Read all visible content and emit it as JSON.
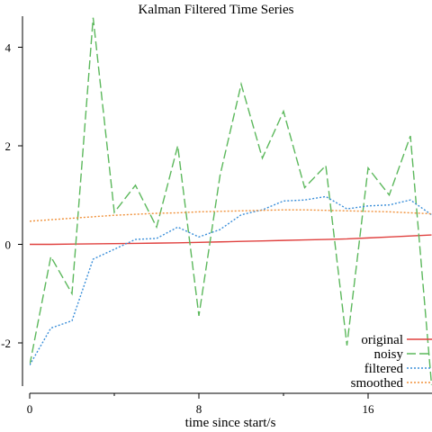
{
  "chart_data": {
    "type": "line",
    "title": "Kalman Filtered Time Series",
    "xlabel": "time since start/s",
    "ylabel": "",
    "xlim": [
      0,
      19
    ],
    "ylim": [
      -2.85,
      4.6
    ],
    "x_ticks": [
      {
        "value": 0,
        "label": "0"
      },
      {
        "value": 8,
        "label": "8"
      },
      {
        "value": 16,
        "label": "16"
      }
    ],
    "x_minor_ticks": [
      4,
      12
    ],
    "y_ticks": [
      {
        "value": -2,
        "label": "-2"
      },
      {
        "value": 0,
        "label": "0"
      },
      {
        "value": 2,
        "label": "2"
      },
      {
        "value": 4,
        "label": "4"
      }
    ],
    "legend_position": "bottom-right",
    "grid": false,
    "x": [
      0,
      1,
      2,
      3,
      4,
      5,
      6,
      7,
      8,
      9,
      10,
      11,
      12,
      13,
      14,
      15,
      16,
      17,
      18,
      19
    ],
    "series": [
      {
        "name": "original",
        "color": "#e0413f",
        "dash": "solid",
        "values": [
          0.0,
          0.0,
          0.005,
          0.01,
          0.015,
          0.02,
          0.025,
          0.03,
          0.04,
          0.05,
          0.06,
          0.07,
          0.08,
          0.09,
          0.1,
          0.11,
          0.13,
          0.15,
          0.17,
          0.19
        ]
      },
      {
        "name": "noisy",
        "color": "#5cb85c",
        "dash": "dashed",
        "values": [
          -2.45,
          -0.25,
          -1.0,
          4.6,
          0.65,
          1.2,
          0.35,
          2.0,
          -1.45,
          1.4,
          3.25,
          1.75,
          2.7,
          1.15,
          1.6,
          -2.05,
          1.55,
          1.0,
          2.2,
          -2.85
        ]
      },
      {
        "name": "filtered",
        "color": "#3b8fd9",
        "dash": "dotted",
        "values": [
          -2.45,
          -1.7,
          -1.55,
          -0.3,
          -0.1,
          0.1,
          0.12,
          0.35,
          0.15,
          0.3,
          0.6,
          0.7,
          0.88,
          0.9,
          0.97,
          0.72,
          0.78,
          0.8,
          0.9,
          0.6
        ]
      },
      {
        "name": "smoothed",
        "color": "#f0913a",
        "dash": "dotted",
        "values": [
          0.47,
          0.5,
          0.53,
          0.56,
          0.59,
          0.61,
          0.63,
          0.64,
          0.66,
          0.67,
          0.68,
          0.69,
          0.7,
          0.7,
          0.69,
          0.68,
          0.67,
          0.66,
          0.64,
          0.62
        ]
      }
    ]
  }
}
